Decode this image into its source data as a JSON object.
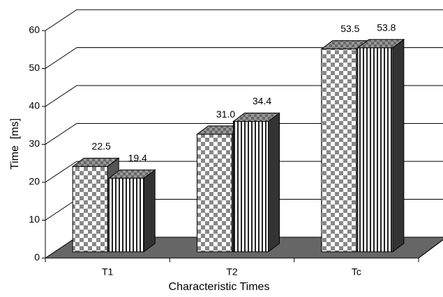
{
  "chart_data": {
    "type": "bar3d",
    "categories": [
      "T1",
      "T2",
      "Tc"
    ],
    "series": [
      {
        "values": [
          22.5,
          31.0,
          53.5
        ],
        "value_labels": [
          "22.5",
          "31.0",
          "53.5"
        ]
      },
      {
        "values": [
          19.4,
          34.4,
          53.8
        ],
        "value_labels": [
          "19.4",
          "34.4",
          "53.8"
        ]
      }
    ],
    "xlabel": "Characteristic Times",
    "ylabel": "Time  [ms]",
    "ylim": [
      0,
      60
    ],
    "yticks": [
      0,
      10,
      20,
      30,
      40,
      50,
      60
    ]
  }
}
